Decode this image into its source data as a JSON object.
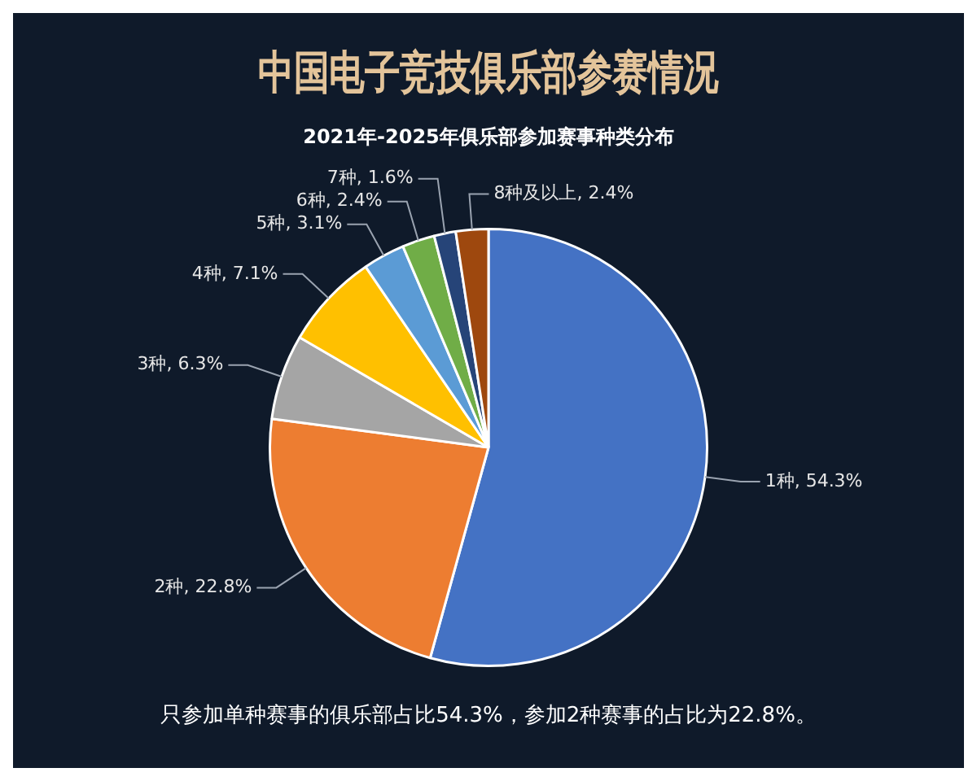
{
  "chart_data": {
    "type": "pie",
    "title": "中国电子竞技俱乐部参赛情况",
    "subtitle": "2021年-2025年俱乐部参加赛事种类分布",
    "categories": [
      "1种",
      "2种",
      "3种",
      "4种",
      "5种",
      "6种",
      "7种",
      "8种及以上"
    ],
    "values": [
      54.3,
      22.8,
      6.3,
      7.1,
      3.1,
      2.4,
      1.6,
      2.4
    ],
    "value_labels": [
      "54.3%",
      "22.8%",
      "6.3%",
      "7.1%",
      "3.1%",
      "2.4%",
      "1.6%",
      "2.4%"
    ],
    "colors": [
      "#4472c4",
      "#ed7d31",
      "#a5a5a5",
      "#ffc000",
      "#5b9bd5",
      "#70ad47",
      "#264478",
      "#9e480e"
    ],
    "legend": false,
    "annotations": [
      "只参加单种赛事的俱乐部占比54.3%，参加2种赛事的占比为22.8%。"
    ]
  }
}
